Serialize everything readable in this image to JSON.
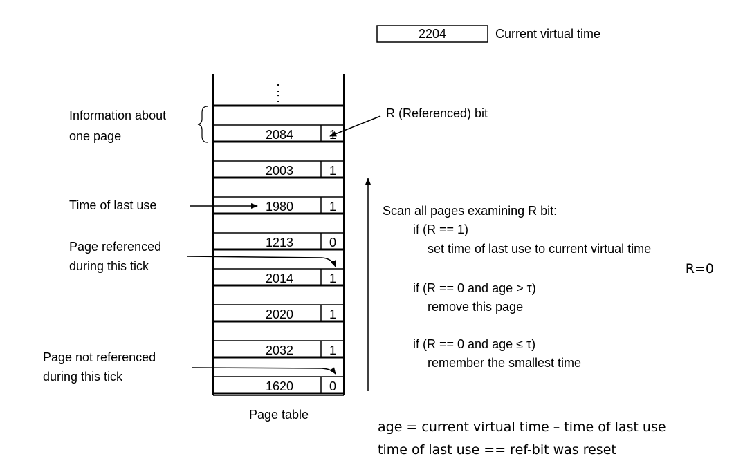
{
  "current_time": {
    "value": "2204",
    "label": "Current virtual time"
  },
  "page_table": {
    "caption": "Page table",
    "ellipsis": ":",
    "entries": [
      {
        "time": "2084",
        "r": "1"
      },
      {
        "time": "2003",
        "r": "1"
      },
      {
        "time": "1980",
        "r": "1"
      },
      {
        "time": "1213",
        "r": "0"
      },
      {
        "time": "2014",
        "r": "1"
      },
      {
        "time": "2020",
        "r": "1"
      },
      {
        "time": "2032",
        "r": "1"
      },
      {
        "time": "1620",
        "r": "0"
      }
    ]
  },
  "labels": {
    "info_line1": "Information about",
    "info_line2": "one page",
    "r_bit": "R (Referenced) bit",
    "time_last_use": "Time of last use",
    "ref_line1": "Page referenced",
    "ref_line2": "during this tick",
    "notref_line1": "Page not referenced",
    "notref_line2": "during this tick"
  },
  "algorithm": {
    "heading": "Scan all pages examining R bit:",
    "cond1": "if (R == 1)",
    "action1": "set time of last use to current virtual time",
    "note_r0": "R=0",
    "cond2": "if (R == 0 and age > τ)",
    "action2": "remove this page",
    "cond3": "if (R == 0 and age ≤ τ)",
    "action3": "remember the smallest time"
  },
  "formulas": {
    "line1": "age = current virtual time – time of last use",
    "line2": "time of last use == ref-bit was reset"
  }
}
